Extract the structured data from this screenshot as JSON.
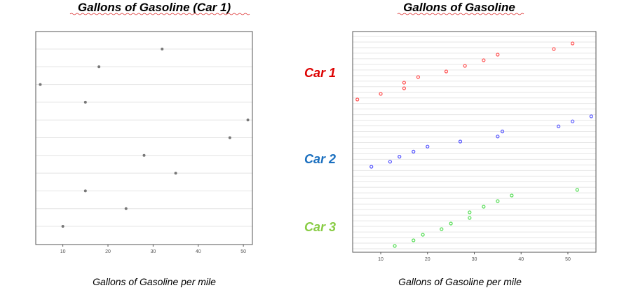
{
  "chart_data": [
    {
      "type": "scatter",
      "title": "Gallons of Gasoline (Car 1)",
      "xlabel": "Gallons of Gasoline per mile",
      "ylabel": "",
      "xlim": [
        4,
        52
      ],
      "xticks": [
        "10",
        "20",
        "30",
        "40",
        "50"
      ],
      "grid": true,
      "series": [
        {
          "name": "Car 1",
          "color": "#777777",
          "x": [
            32,
            18,
            5,
            15,
            51,
            47,
            28,
            35,
            15,
            24,
            10
          ]
        }
      ]
    },
    {
      "type": "scatter",
      "title": "Gallons of Gasoline",
      "xlabel": "Gallons of Gasoline per mile",
      "ylabel": "",
      "xlim": [
        4,
        56
      ],
      "xticks": [
        "10",
        "20",
        "30",
        "40",
        "50"
      ],
      "grid": true,
      "series": [
        {
          "name": "Car 1",
          "label": "Car 1",
          "color": "#ff5555",
          "label_color": "#dd0000",
          "x": [
            51,
            47,
            35,
            32,
            28,
            24,
            18,
            15,
            15,
            10,
            5
          ]
        },
        {
          "name": "Car 2",
          "label": "Car 2",
          "color": "#5555ff",
          "label_color": "#1a6fbf",
          "x": [
            55,
            51,
            48,
            36,
            35,
            27,
            20,
            17,
            14,
            12,
            8
          ]
        },
        {
          "name": "Car 3",
          "label": "Car 3",
          "color": "#55dd55",
          "label_color": "#88cc44",
          "x": [
            52,
            38,
            35,
            32,
            29,
            29,
            25,
            23,
            19,
            17,
            13
          ]
        }
      ]
    }
  ]
}
